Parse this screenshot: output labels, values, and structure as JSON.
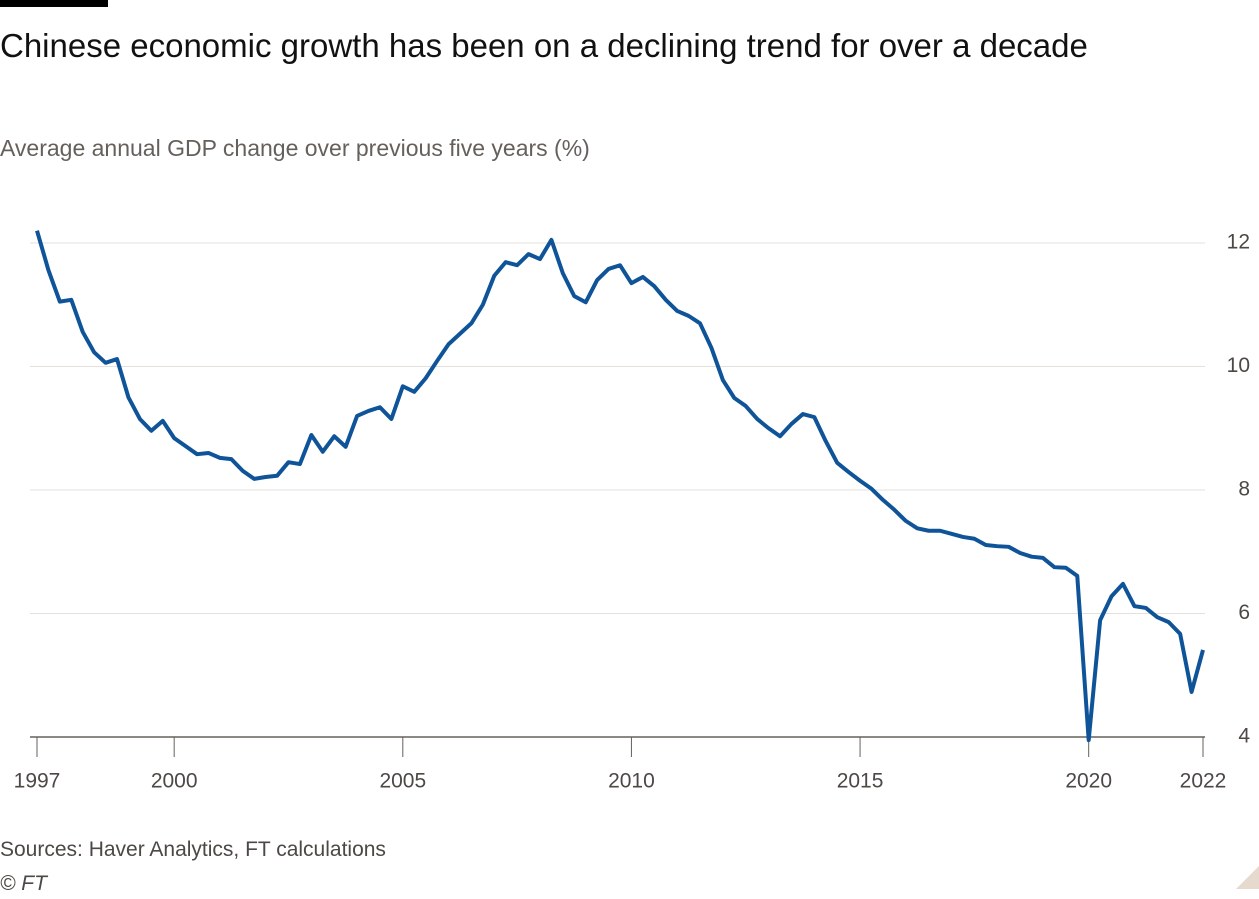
{
  "chart_data": {
    "type": "line",
    "title": "Chinese economic growth has been on a declining trend for over a decade",
    "subtitle": "Average annual GDP change over previous five years (%)",
    "source": "Sources: Haver Analytics, FT calculations",
    "credit": "© FT",
    "x": [
      1997,
      1997.25,
      1997.5,
      1997.75,
      1998,
      1998.25,
      1998.5,
      1998.75,
      1999,
      1999.25,
      1999.5,
      1999.75,
      2000,
      2000.25,
      2000.5,
      2000.75,
      2001,
      2001.25,
      2001.5,
      2001.75,
      2002,
      2002.25,
      2002.5,
      2002.75,
      2003,
      2003.25,
      2003.5,
      2003.75,
      2004,
      2004.25,
      2004.5,
      2004.75,
      2005,
      2005.25,
      2005.5,
      2005.75,
      2006,
      2006.25,
      2006.5,
      2006.75,
      2007,
      2007.25,
      2007.5,
      2007.75,
      2008,
      2008.25,
      2008.5,
      2008.75,
      2009,
      2009.25,
      2009.5,
      2009.75,
      2010,
      2010.25,
      2010.5,
      2010.75,
      2011,
      2011.25,
      2011.5,
      2011.75,
      2012,
      2012.25,
      2012.5,
      2012.75,
      2013,
      2013.25,
      2013.5,
      2013.75,
      2014,
      2014.25,
      2014.5,
      2014.75,
      2015,
      2015.25,
      2015.5,
      2015.75,
      2016,
      2016.25,
      2016.5,
      2016.75,
      2017,
      2017.25,
      2017.5,
      2017.75,
      2018,
      2018.25,
      2018.5,
      2018.75,
      2019,
      2019.25,
      2019.5,
      2019.75,
      2020,
      2020.25,
      2020.5,
      2020.75,
      2021,
      2021.25,
      2021.5,
      2021.75,
      2022,
      2022.25,
      2022.5
    ],
    "series": [
      {
        "name": "GDP change",
        "color": "#0f5499",
        "values": [
          12.2,
          11.56,
          11.05,
          11.08,
          10.56,
          10.23,
          10.06,
          10.12,
          9.5,
          9.15,
          8.96,
          9.12,
          8.84,
          8.71,
          8.58,
          8.6,
          8.52,
          8.5,
          8.31,
          8.18,
          8.21,
          8.23,
          8.45,
          8.42,
          8.89,
          8.62,
          8.87,
          8.7,
          9.2,
          9.28,
          9.34,
          9.15,
          9.68,
          9.59,
          9.81,
          10.09,
          10.36,
          10.53,
          10.7,
          11.0,
          11.47,
          11.69,
          11.64,
          11.82,
          11.74,
          12.05,
          11.51,
          11.14,
          11.04,
          11.4,
          11.58,
          11.64,
          11.35,
          11.45,
          11.3,
          11.08,
          10.9,
          10.82,
          10.7,
          10.3,
          9.78,
          9.49,
          9.36,
          9.15,
          9.0,
          8.87,
          9.07,
          9.23,
          9.18,
          8.79,
          8.44,
          8.29,
          8.15,
          8.02,
          7.84,
          7.68,
          7.5,
          7.38,
          7.34,
          7.34,
          7.29,
          7.24,
          7.21,
          7.11,
          7.09,
          7.08,
          6.98,
          6.92,
          6.9,
          6.75,
          6.74,
          6.61,
          3.95,
          5.89,
          6.28,
          6.48,
          6.12,
          6.09,
          5.94,
          5.86,
          5.67,
          4.73,
          5.41
        ]
      }
    ],
    "xlim": [
      1997,
      2022.5
    ],
    "xticks": [
      1997,
      2000,
      2005,
      2010,
      2015,
      2020,
      {
        "value": 2022.5,
        "label": "2022"
      }
    ],
    "ylim": [
      4,
      12.2
    ],
    "yticks": [
      4,
      6,
      8,
      10,
      12
    ],
    "grid": true
  }
}
